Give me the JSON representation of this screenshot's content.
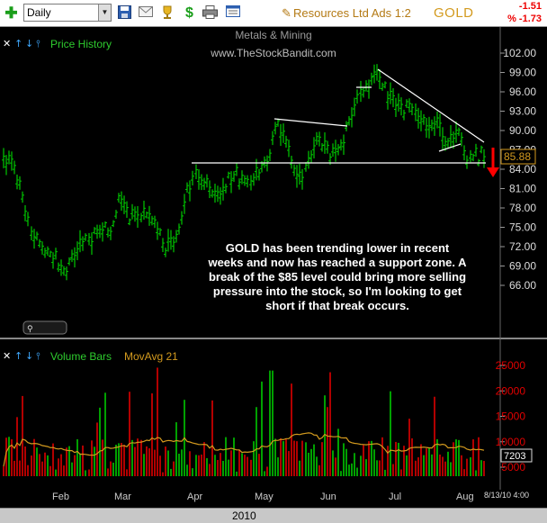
{
  "toolbar": {
    "interval": "Daily",
    "icons": [
      "add-icon",
      "save-icon",
      "email-icon",
      "trophy-icon",
      "dollar-icon",
      "print-icon",
      "list-icon",
      "pencil-icon"
    ],
    "dollar": "$",
    "symbol_desc": "Resources Ltd Ads 1:2",
    "ticker": "GOLD",
    "change_abs": "-1.51",
    "change_pct": "% -1.73"
  },
  "price_panel": {
    "label": "Price History",
    "watermark_line1": "Metals & Mining",
    "watermark_line2": "www.TheStockBandit.com",
    "axis_ticks": [
      "102.00",
      "99.00",
      "96.00",
      "93.00",
      "90.00",
      "87.00",
      "84.00",
      "81.00",
      "78.00",
      "75.00",
      "72.00",
      "69.00",
      "66.00"
    ],
    "last_price": "85.88",
    "annotation": "GOLD has been trending lower in recent weeks and now has reached a support zone.  A break of the $85 level could bring more selling pressure into the stock, so I'm looking to get short if that break occurs."
  },
  "volume_panel": {
    "label": "Volume Bars",
    "ma_label": "MovAvg 21",
    "axis_ticks": [
      "25000",
      "20000",
      "15000",
      "10000",
      "5000"
    ],
    "last_ma": "7203"
  },
  "date_axis": {
    "months": [
      "Feb",
      "Mar",
      "Apr",
      "May",
      "Jun",
      "Jul",
      "Aug"
    ],
    "year": "2010",
    "timestamp": "8/13/10 4:00"
  },
  "colors": {
    "up_bar": "#00c800",
    "down_bar": "#e00000",
    "ma": "#d39a1e",
    "trendline": "#ffffff",
    "arrow": "#ff0000"
  }
}
